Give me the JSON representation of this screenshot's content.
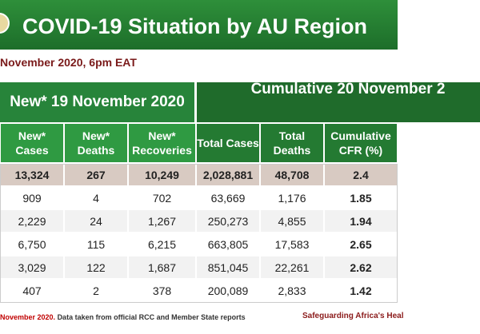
{
  "header": {
    "title": "COVID-19 Situation by AU Region",
    "subtitle": "November 2020, 6pm EAT"
  },
  "table": {
    "groups": [
      "New* 19 November 2020",
      "Cumulative 20 November 2"
    ],
    "columns": [
      [
        "New*",
        "Cases"
      ],
      [
        "New*",
        "Deaths"
      ],
      [
        "New*",
        "Recoveries"
      ],
      [
        "Total Cases"
      ],
      [
        "Total",
        "Deaths"
      ],
      [
        "Cumulative",
        "CFR (%)"
      ]
    ],
    "total": [
      "13,324",
      "267",
      "10,249",
      "2,028,881",
      "48,708",
      "2.4"
    ],
    "rows": [
      [
        "909",
        "4",
        "702",
        "63,669",
        "1,176",
        "1.85"
      ],
      [
        "2,229",
        "24",
        "1,267",
        "250,273",
        "4,855",
        "1.94"
      ],
      [
        "6,750",
        "115",
        "6,215",
        "663,805",
        "17,583",
        "2.65"
      ],
      [
        "3,029",
        "122",
        "1,687",
        "851,045",
        "22,261",
        "2.62"
      ],
      [
        "407",
        "2",
        "378",
        "200,089",
        "2,833",
        "1.42"
      ]
    ]
  },
  "footer": {
    "date": "November 2020.",
    "source": "Data taken from official RCC and Member State reports",
    "slogan": "Safeguarding Africa's Heal"
  }
}
